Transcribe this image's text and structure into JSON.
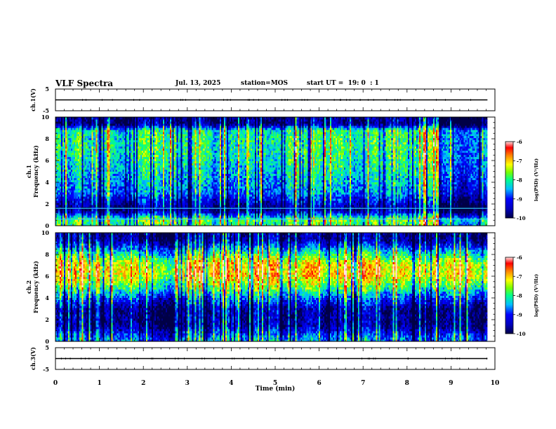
{
  "header": {
    "title": "VLF Spectra",
    "date": "Jul. 13, 2025",
    "station": "station=MOS",
    "start": "start UT =  19: 0  : 1"
  },
  "colors": {
    "scale": [
      "#000080",
      "#0000ff",
      "#00c0ff",
      "#00ff80",
      "#80ff00",
      "#ffff00",
      "#ff8000",
      "#ff0000",
      "#ffe0e0"
    ]
  },
  "chart_data": [
    {
      "type": "line",
      "panel": "ch1-voltage",
      "ylabel": "ch.1(V)",
      "ylim": [
        -5,
        5
      ],
      "yticks": [
        "5",
        "-5"
      ],
      "x": [
        0,
        9.83
      ],
      "series": [
        {
          "values": [
            0,
            0
          ]
        }
      ]
    },
    {
      "type": "heatmap",
      "panel": "ch1-spectrogram",
      "ylabel": "ch.1\nFrequency (kHz)",
      "ylim": [
        0,
        10
      ],
      "yticks": [
        "0",
        "2",
        "4",
        "6",
        "8",
        "10"
      ],
      "xlim": [
        0,
        10
      ],
      "data_xmax": 9.83,
      "colorbar": {
        "label": "log(PSD) (V²/Hz)",
        "range": [
          -10,
          -6
        ],
        "ticks": [
          "-6",
          "-7",
          "-8",
          "-9",
          "-10"
        ]
      },
      "profile": [
        {
          "f": 0.3,
          "level": -8.0
        },
        {
          "f": 0.6,
          "level": -7.8
        },
        {
          "f": 1.2,
          "level": -9.4
        },
        {
          "f": 1.6,
          "level": -9.8
        },
        {
          "f": 3.0,
          "level": -8.8
        },
        {
          "f": 5.0,
          "level": -8.4
        },
        {
          "f": 7.0,
          "level": -8.1
        },
        {
          "f": 8.8,
          "level": -8.2
        },
        {
          "f": 9.4,
          "level": -9.8
        }
      ],
      "lines_khz": [
        1.6,
        0.6
      ]
    },
    {
      "type": "heatmap",
      "panel": "ch2-spectrogram",
      "ylabel": "ch.2\nFrequency (kHz)",
      "ylim": [
        0,
        10
      ],
      "yticks": [
        "0",
        "2",
        "4",
        "6",
        "8",
        "10"
      ],
      "xlim": [
        0,
        10
      ],
      "data_xmax": 9.83,
      "colorbar": {
        "label": "log(PSD) (V²/Hz)",
        "range": [
          -10,
          -6
        ],
        "ticks": [
          "-6",
          "-7",
          "-8",
          "-9",
          "-10"
        ]
      },
      "profile": [
        {
          "f": 0.3,
          "level": -8.6
        },
        {
          "f": 1.5,
          "level": -9.6
        },
        {
          "f": 3.0,
          "level": -9.6
        },
        {
          "f": 4.0,
          "level": -8.8
        },
        {
          "f": 5.0,
          "level": -7.8
        },
        {
          "f": 6.2,
          "level": -7.0
        },
        {
          "f": 7.2,
          "level": -7.2
        },
        {
          "f": 8.3,
          "level": -8.3
        },
        {
          "f": 9.4,
          "level": -9.6
        }
      ],
      "lines_khz": []
    },
    {
      "type": "line",
      "panel": "ch3-voltage",
      "ylabel": "ch.3(V)",
      "ylim": [
        -5,
        5
      ],
      "yticks": [
        "5",
        "-5"
      ],
      "x": [
        0,
        9.83
      ],
      "series": [
        {
          "values": [
            0,
            0
          ]
        }
      ]
    }
  ],
  "xaxis": {
    "label": "Time (min)",
    "ticks": [
      "0",
      "1",
      "2",
      "3",
      "4",
      "5",
      "6",
      "7",
      "8",
      "9",
      "10"
    ]
  }
}
